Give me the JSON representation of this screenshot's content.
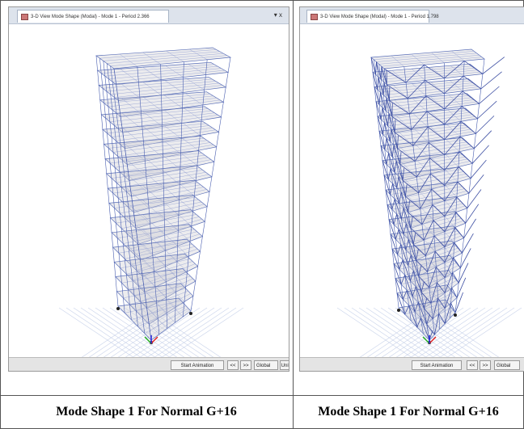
{
  "panels": [
    {
      "tab_title": "3-D View Mode Shape (Modal) - Mode 1 - Period 2.366",
      "tab_controls": "▾ x",
      "toolbar": {
        "start": "Start Animation",
        "prev": "<<",
        "next": ">>",
        "coord": "Global",
        "units": "Units..."
      },
      "caption": "Mode Shape 1 For Normal G+16"
    },
    {
      "tab_title": "3-D View Mode Shape (Modal) - Mode 1 - Period 1.798",
      "toolbar": {
        "start": "Start Animation",
        "prev": "<<",
        "next": ">>",
        "coord": "Global"
      },
      "caption": "Mode Shape 1 For Normal G+16"
    }
  ]
}
